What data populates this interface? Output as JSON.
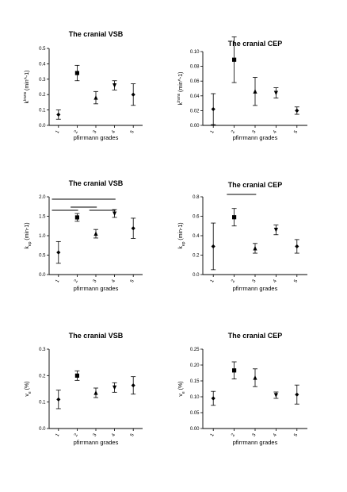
{
  "figure": {
    "xlabel": "pfirrmann grades",
    "categories": [
      "1",
      "2",
      "3",
      "4",
      "5"
    ]
  },
  "chart_data": [
    {
      "type": "scatter",
      "title": "The cranial VSB",
      "xlabel": "pfirrmann grades",
      "ylabel": "k^trans (min^-1)",
      "categories": [
        "1",
        "2",
        "3",
        "4",
        "5"
      ],
      "ylim": [
        0,
        0.5
      ],
      "yticks": [
        "0.0",
        "0.1",
        "0.2",
        "0.3",
        "0.4",
        "0.5"
      ],
      "series": [
        {
          "values": [
            0.07,
            0.34,
            0.18,
            0.26,
            0.2
          ],
          "err_low": [
            0.03,
            0.05,
            0.04,
            0.03,
            0.07
          ],
          "err_high": [
            0.03,
            0.05,
            0.04,
            0.03,
            0.07
          ]
        }
      ]
    },
    {
      "type": "scatter",
      "title": "The cranial CEP",
      "xlabel": "pfirrmann grades",
      "ylabel": "k^trans (min^-1)",
      "categories": [
        "1",
        "2",
        "3",
        "4",
        "5"
      ],
      "ylim": [
        0,
        0.1
      ],
      "yticks": [
        "0.00",
        "0.02",
        "0.04",
        "0.06",
        "0.08",
        "0.10"
      ],
      "series": [
        {
          "values": [
            0.022,
            0.089,
            0.046,
            0.044,
            0.02
          ],
          "err_low": [
            0.021,
            0.031,
            0.019,
            0.007,
            0.005
          ],
          "err_high": [
            0.021,
            0.031,
            0.019,
            0.007,
            0.005
          ]
        }
      ]
    },
    {
      "type": "scatter",
      "title": "The cranial VSB",
      "xlabel": "pfirrmann grades",
      "ylabel": "k_ep (min-1)",
      "categories": [
        "1",
        "2",
        "3",
        "4",
        "5"
      ],
      "ylim": [
        0,
        2.0
      ],
      "yticks": [
        "0.0",
        "0.5",
        "1.0",
        "1.5",
        "2.0"
      ],
      "significance_bars": [
        [
          1,
          2
        ],
        [
          2,
          3
        ],
        [
          3,
          4
        ],
        [
          1,
          4
        ]
      ],
      "series": [
        {
          "values": [
            0.57,
            1.47,
            1.05,
            1.57,
            1.19
          ],
          "err_low": [
            0.28,
            0.1,
            0.11,
            0.1,
            0.26
          ],
          "err_high": [
            0.28,
            0.1,
            0.11,
            0.1,
            0.26
          ]
        }
      ]
    },
    {
      "type": "scatter",
      "title": "The cranial CEP",
      "xlabel": "pfirrmann grades",
      "ylabel": "k_ep (min-1)",
      "categories": [
        "1",
        "2",
        "3",
        "4",
        "5"
      ],
      "ylim": [
        0,
        0.8
      ],
      "yticks": [
        "0.0",
        "0.2",
        "0.4",
        "0.6",
        "0.8"
      ],
      "significance_bars": [
        [
          2,
          3
        ]
      ],
      "series": [
        {
          "values": [
            0.29,
            0.59,
            0.27,
            0.46,
            0.29
          ],
          "err_low": [
            0.24,
            0.09,
            0.05,
            0.05,
            0.07
          ],
          "err_high": [
            0.24,
            0.09,
            0.05,
            0.05,
            0.07
          ]
        }
      ]
    },
    {
      "type": "scatter",
      "title": "The cranial VSB",
      "xlabel": "pfirrmann grades",
      "ylabel": "v_e (%)",
      "categories": [
        "1",
        "2",
        "3",
        "4",
        "5"
      ],
      "ylim": [
        0,
        0.3
      ],
      "yticks": [
        "0.0",
        "0.1",
        "0.2",
        "0.3"
      ],
      "series": [
        {
          "values": [
            0.11,
            0.2,
            0.135,
            0.155,
            0.163
          ],
          "err_low": [
            0.035,
            0.018,
            0.018,
            0.018,
            0.033
          ],
          "err_high": [
            0.035,
            0.018,
            0.018,
            0.018,
            0.033
          ]
        }
      ]
    },
    {
      "type": "scatter",
      "title": "The cranial CEP",
      "xlabel": "pfirrmann grades",
      "ylabel": "v_e (%)",
      "categories": [
        "1",
        "2",
        "3",
        "4",
        "5"
      ],
      "ylim": [
        0,
        0.25
      ],
      "yticks": [
        "0.00",
        "0.05",
        "0.10",
        "0.15",
        "0.20",
        "0.25"
      ],
      "series": [
        {
          "values": [
            0.095,
            0.183,
            0.16,
            0.105,
            0.107
          ],
          "err_low": [
            0.022,
            0.027,
            0.028,
            0.01,
            0.03
          ],
          "err_high": [
            0.022,
            0.027,
            0.028,
            0.01,
            0.03
          ]
        }
      ]
    }
  ]
}
